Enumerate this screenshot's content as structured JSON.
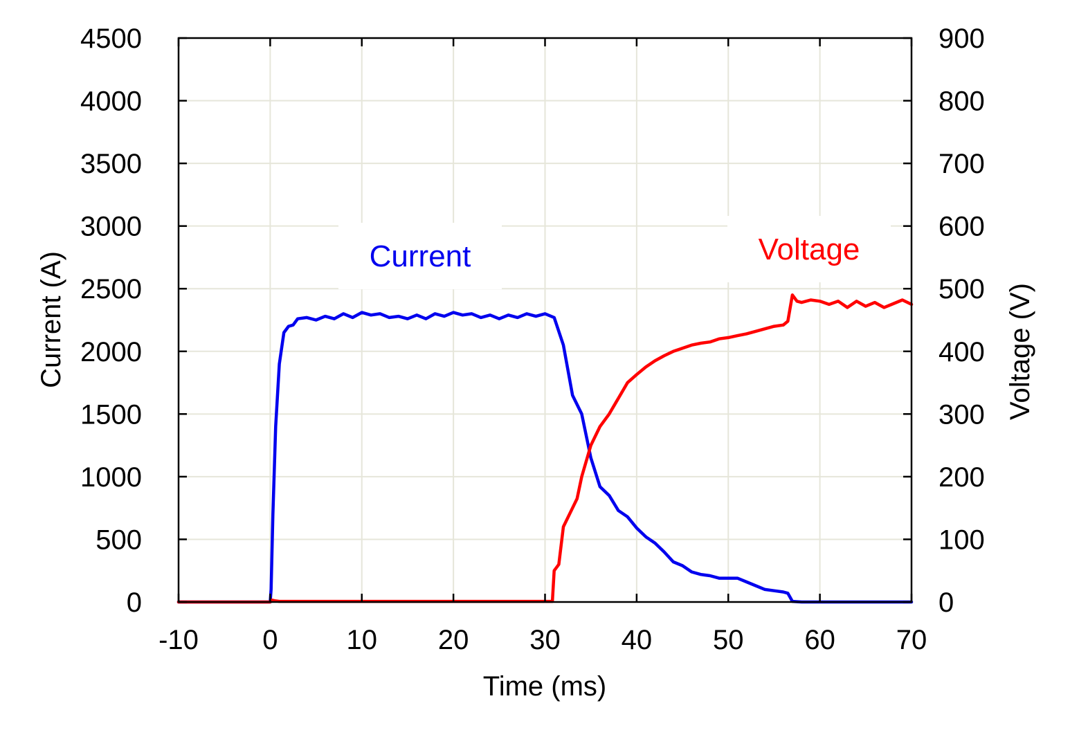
{
  "chart_data": {
    "type": "line",
    "xlabel": "Time (ms)",
    "ylabel": "Current (A)",
    "y2label": "Voltage (V)",
    "xlim": [
      -10,
      70
    ],
    "ylim": [
      0,
      4500
    ],
    "y2lim": [
      0,
      900
    ],
    "xticks": [
      -10,
      0,
      10,
      20,
      30,
      40,
      50,
      60,
      70
    ],
    "yticks": [
      0,
      500,
      1000,
      1500,
      2000,
      2500,
      3000,
      3500,
      4000,
      4500
    ],
    "y2ticks": [
      0,
      100,
      200,
      300,
      400,
      500,
      600,
      700,
      800,
      900
    ],
    "grid": true,
    "annotations": [
      {
        "text": "Current",
        "color": "#0000ee"
      },
      {
        "text": "Voltage",
        "color": "#ff0000"
      }
    ],
    "series": [
      {
        "name": "Current",
        "axis": "left",
        "color": "#0000ee",
        "x": [
          -10,
          -3,
          0,
          0.1,
          0.3,
          0.6,
          1.0,
          1.5,
          2.0,
          2.5,
          3.0,
          4.0,
          5,
          6,
          7,
          8,
          9,
          10,
          11,
          12,
          13,
          14,
          15,
          16,
          17,
          18,
          19,
          20,
          21,
          22,
          23,
          24,
          25,
          26,
          27,
          28,
          29,
          30,
          31,
          32,
          33,
          34,
          35,
          36,
          37,
          38,
          39,
          40,
          41,
          42,
          43,
          44,
          45,
          46,
          47,
          48,
          49,
          50,
          51,
          52,
          53,
          54,
          55,
          56,
          56.5,
          57,
          58,
          60,
          65,
          70
        ],
        "values": [
          0,
          0,
          0,
          100,
          700,
          1400,
          1900,
          2150,
          2200,
          2210,
          2260,
          2270,
          2250,
          2280,
          2260,
          2300,
          2270,
          2310,
          2290,
          2300,
          2270,
          2280,
          2260,
          2290,
          2260,
          2300,
          2280,
          2310,
          2290,
          2300,
          2270,
          2290,
          2260,
          2290,
          2270,
          2300,
          2280,
          2300,
          2270,
          2050,
          1650,
          1500,
          1150,
          920,
          850,
          730,
          680,
          590,
          520,
          470,
          400,
          320,
          290,
          240,
          220,
          210,
          190,
          190,
          190,
          160,
          130,
          100,
          90,
          80,
          70,
          5,
          0,
          0,
          0,
          0
        ]
      },
      {
        "name": "Voltage",
        "axis": "right",
        "color": "#ff0000",
        "x": [
          -10,
          0,
          0.2,
          0.5,
          1,
          10,
          20,
          30,
          30.8,
          31,
          31.5,
          32,
          32.5,
          33,
          33.5,
          34,
          35,
          36,
          37,
          38,
          39,
          40,
          41,
          42,
          43,
          44,
          45,
          46,
          47,
          48,
          49,
          50,
          51,
          52,
          53,
          54,
          55,
          56,
          56.5,
          57,
          57.5,
          58,
          59,
          60,
          61,
          62,
          63,
          64,
          65,
          66,
          67,
          68,
          69,
          70
        ],
        "values": [
          0,
          0,
          3,
          2,
          1,
          1,
          1,
          1,
          1,
          50,
          60,
          120,
          135,
          150,
          165,
          200,
          250,
          280,
          300,
          325,
          350,
          363,
          375,
          385,
          393,
          400,
          405,
          410,
          413,
          415,
          420,
          422,
          425,
          428,
          432,
          436,
          440,
          442,
          448,
          490,
          480,
          478,
          482,
          480,
          475,
          480,
          470,
          480,
          472,
          478,
          470,
          476,
          482,
          475
        ]
      }
    ]
  }
}
